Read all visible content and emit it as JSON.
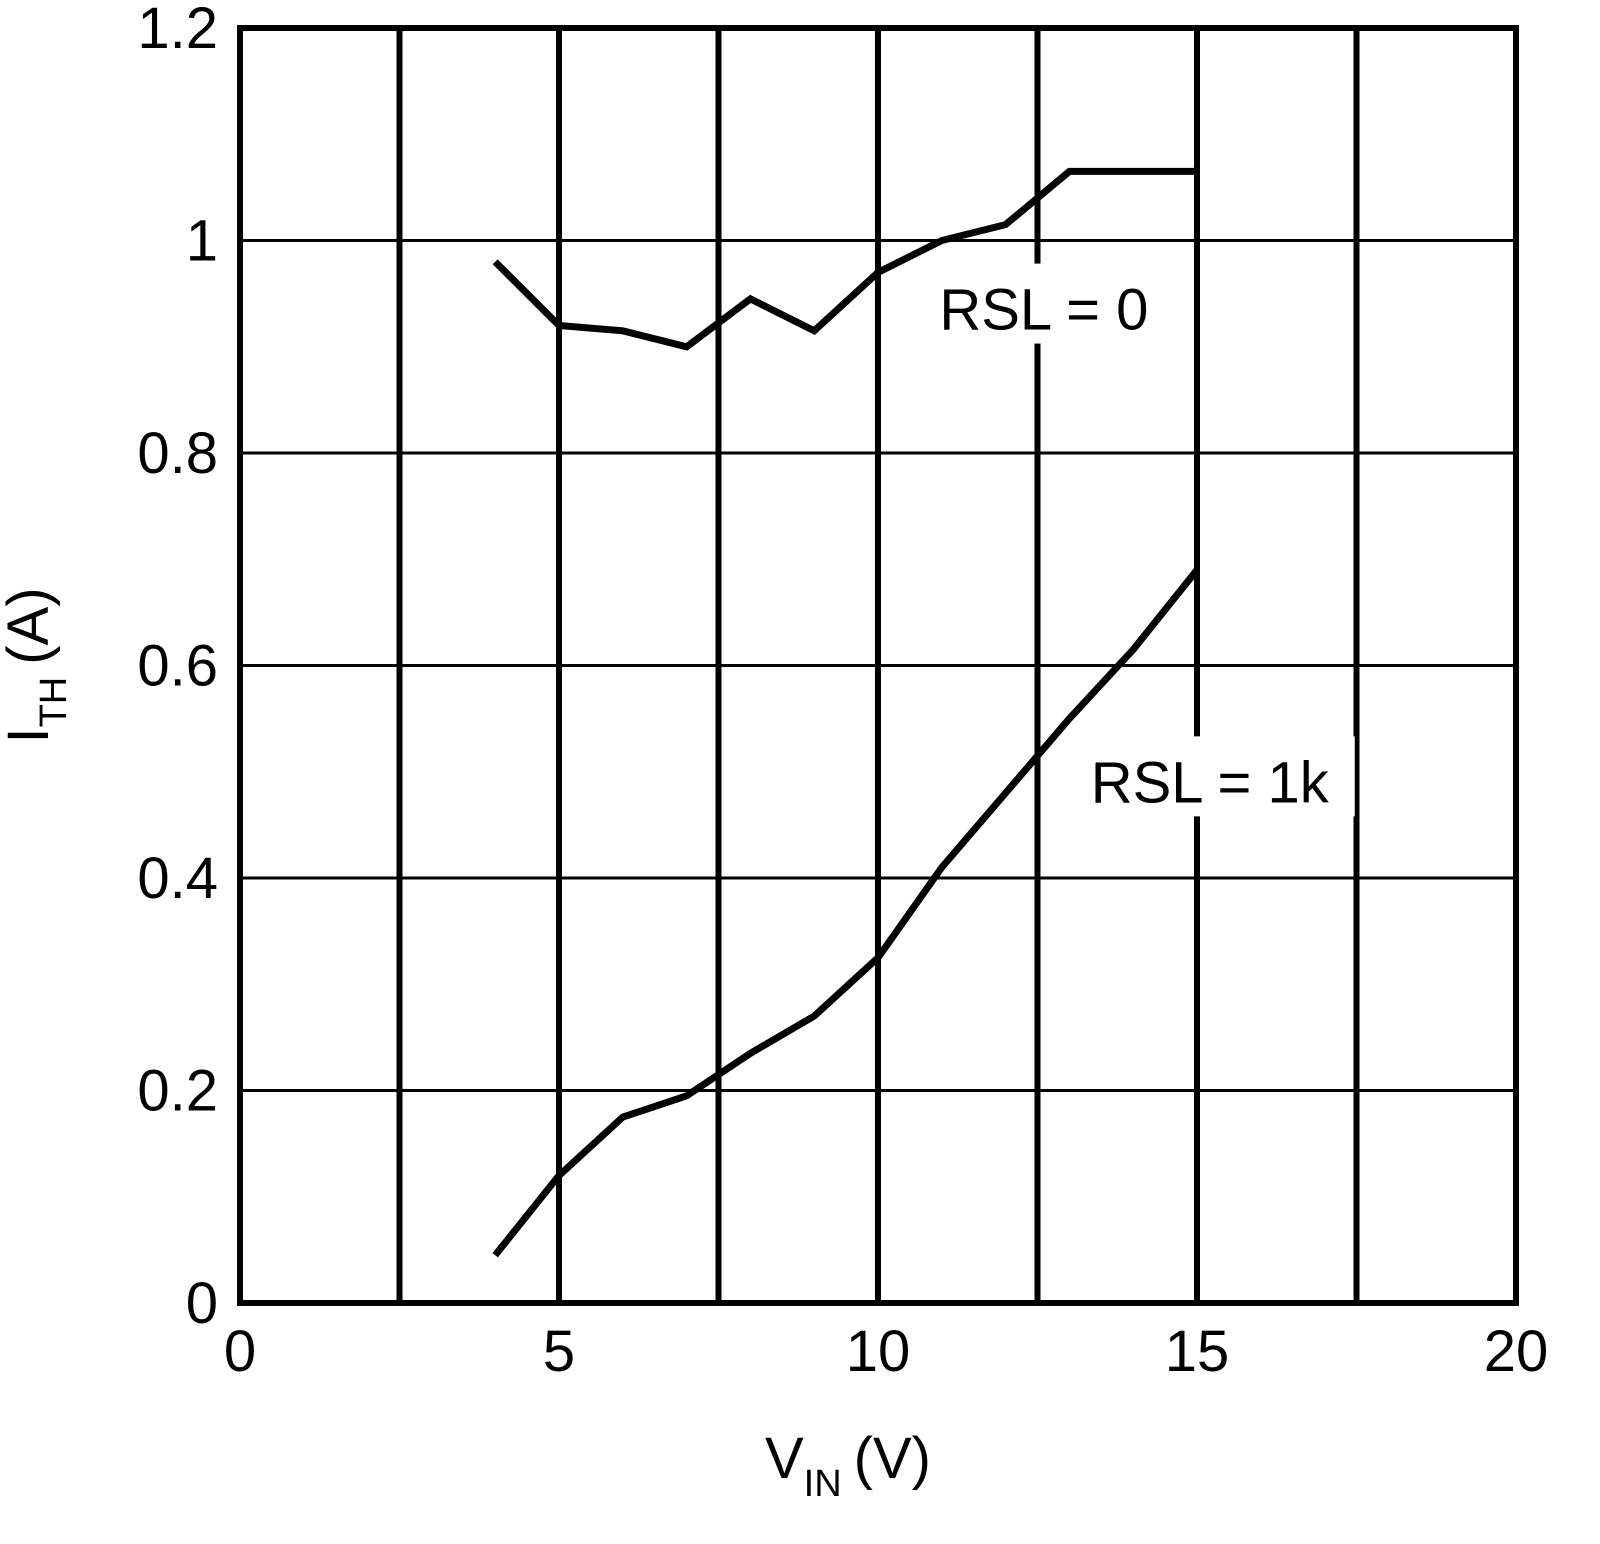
{
  "chart_data": {
    "type": "line",
    "x_ticks": [
      "0",
      "5",
      "10",
      "15",
      "20"
    ],
    "y_ticks": [
      "0",
      "0.2",
      "0.4",
      "0.6",
      "0.8",
      "1",
      "1.2"
    ],
    "xlim": [
      0,
      20
    ],
    "ylim": [
      0,
      1.2
    ],
    "x_gridlines": [
      2.5,
      5,
      7.5,
      10,
      12.5,
      15,
      17.5
    ],
    "y_gridlines": [
      0.2,
      0.4,
      0.6,
      0.8,
      1.0
    ],
    "grid": true,
    "xlabel": {
      "main": "V",
      "sub": "IN",
      "unit": "(V)"
    },
    "ylabel": {
      "main": "I",
      "sub": "TH",
      "unit": "(A)"
    },
    "series": [
      {
        "name": "RSL = 0",
        "x": [
          4.0,
          5.0,
          6.0,
          7.0,
          8.0,
          9.0,
          10.0,
          11.0,
          12.0,
          13.0,
          14.0,
          15.0
        ],
        "y": [
          0.98,
          0.92,
          0.915,
          0.9,
          0.945,
          0.915,
          0.97,
          1.0,
          1.015,
          1.065,
          1.065,
          1.065
        ]
      },
      {
        "name": "RSL = 1k",
        "x": [
          4.0,
          5.0,
          6.0,
          7.0,
          8.0,
          9.0,
          10.0,
          11.0,
          12.0,
          13.0,
          14.0,
          15.0
        ],
        "y": [
          0.045,
          0.12,
          0.175,
          0.195,
          0.235,
          0.27,
          0.325,
          0.41,
          0.48,
          0.55,
          0.615,
          0.69
        ]
      }
    ],
    "annotations": [
      "RSL = 0",
      "RSL = 1k"
    ]
  }
}
